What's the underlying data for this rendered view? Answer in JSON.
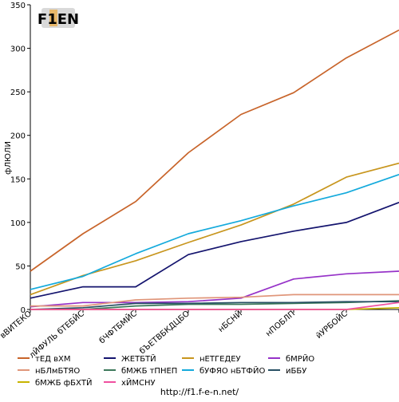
{
  "logo_text": "F1EN",
  "source_url": "http://f1.f-e-n.net/",
  "chart_data": {
    "type": "line",
    "title": "",
    "xlabel": "",
    "ylabel": "фЛЮЛИ",
    "ylim": [
      0,
      350
    ],
    "yticks": [
      0,
      50,
      100,
      150,
      200,
      250,
      300,
      350
    ],
    "grid": false,
    "legend_position": "bottom",
    "categories": [
      "вВИТЕКО",
      "лЙФУЛЬ бТЕБЙС",
      "бЧФТБМЙС",
      "бЪЕТВБКДЦБО",
      "нБСНЙ",
      "нПОБЛП",
      "йУРБОЙС",
      ""
    ],
    "series": [
      {
        "name": "тЕД вХМ",
        "color": "#c8642a",
        "values": [
          44,
          87,
          124,
          180,
          224,
          249,
          289,
          321
        ]
      },
      {
        "name": "ЖЕТБТЙ",
        "color": "#14146e",
        "values": [
          13,
          26,
          26,
          63,
          78,
          90,
          100,
          123
        ]
      },
      {
        "name": "нЕТГЕДЕУ",
        "color": "#c8961e",
        "values": [
          17,
          39,
          56,
          77,
          97,
          121,
          152,
          168
        ]
      },
      {
        "name": "бМРЙО",
        "color": "#9632c8",
        "values": [
          3,
          8,
          8,
          9,
          13,
          35,
          41,
          44
        ]
      },
      {
        "name": "нБЛмБТЯО",
        "color": "#e0967a",
        "values": [
          4,
          4,
          11,
          13,
          14,
          17,
          17,
          17
        ]
      },
      {
        "name": "бМЖБ тПНЕП",
        "color": "#3c785a",
        "values": [
          0,
          0,
          4,
          6,
          6,
          7,
          8,
          10
        ]
      },
      {
        "name": "бУФЯО нБТФЙО",
        "color": "#14aadc",
        "values": [
          23,
          38,
          64,
          87,
          102,
          119,
          134,
          155
        ]
      },
      {
        "name": "иББУ",
        "color": "#285064",
        "values": [
          0,
          2,
          7,
          7,
          8,
          8,
          9,
          9
        ]
      },
      {
        "name": "бМЖБ фБХТЙ",
        "color": "#c8b400",
        "values": [
          0,
          0,
          0,
          0,
          0,
          0,
          0,
          2
        ]
      },
      {
        "name": "хЙМСНУ",
        "color": "#f050a0",
        "values": [
          0,
          0,
          0,
          0,
          0,
          0,
          0,
          8
        ]
      }
    ]
  }
}
